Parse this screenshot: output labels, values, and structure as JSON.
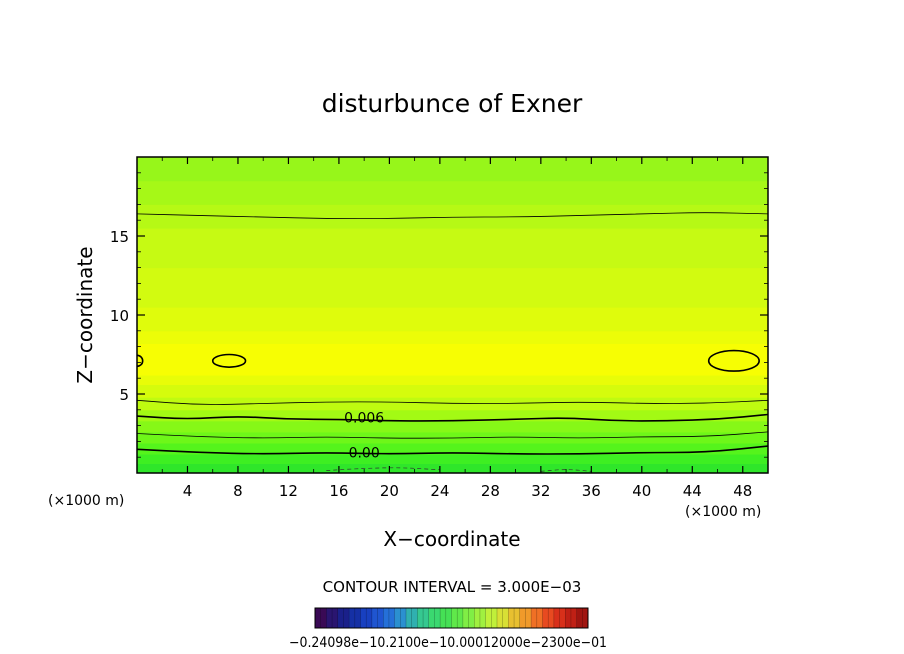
{
  "chart_data": {
    "type": "contour",
    "title": "disturbunce of Exner",
    "xlabel": "X−coordinate",
    "ylabel": "Z−coordinate",
    "x_unit_label": "(×1000 m)",
    "y_unit_label": "(×1000 m)",
    "xlim": [
      0,
      50
    ],
    "ylim": [
      0,
      20
    ],
    "x_ticks": [
      "4",
      "8",
      "12",
      "16",
      "20",
      "24",
      "28",
      "32",
      "36",
      "40",
      "44",
      "48"
    ],
    "y_ticks": [
      "5",
      "10",
      "15"
    ],
    "contour_interval_text": "CONTOUR INTERVAL = 3.000E−03",
    "contour_labels": [
      {
        "text": "0.006",
        "x": 18,
        "z": 3.5
      },
      {
        "text": "0.00",
        "x": 18,
        "z": 1.3
      }
    ],
    "contours": [
      {
        "level": 0.0,
        "thick": true,
        "points": [
          [
            0,
            1.5
          ],
          [
            5,
            1.3
          ],
          [
            10,
            1.2
          ],
          [
            15,
            1.3
          ],
          [
            20,
            1.2
          ],
          [
            25,
            1.3
          ],
          [
            30,
            1.2
          ],
          [
            35,
            1.2
          ],
          [
            40,
            1.3
          ],
          [
            45,
            1.3
          ],
          [
            50,
            1.7
          ]
        ]
      },
      {
        "level": 0.003,
        "thick": false,
        "points": [
          [
            0,
            2.5
          ],
          [
            5,
            2.3
          ],
          [
            10,
            2.2
          ],
          [
            15,
            2.3
          ],
          [
            20,
            2.2
          ],
          [
            25,
            2.2
          ],
          [
            30,
            2.3
          ],
          [
            35,
            2.2
          ],
          [
            40,
            2.3
          ],
          [
            45,
            2.3
          ],
          [
            50,
            2.6
          ]
        ]
      },
      {
        "level": 0.006,
        "thick": true,
        "points": [
          [
            0,
            3.6
          ],
          [
            4,
            3.4
          ],
          [
            8,
            3.6
          ],
          [
            12,
            3.4
          ],
          [
            16,
            3.4
          ],
          [
            20,
            3.3
          ],
          [
            25,
            3.3
          ],
          [
            30,
            3.4
          ],
          [
            34,
            3.5
          ],
          [
            38,
            3.3
          ],
          [
            42,
            3.3
          ],
          [
            46,
            3.4
          ],
          [
            50,
            3.7
          ]
        ]
      },
      {
        "level": 0.009,
        "thick": false,
        "points": [
          [
            0,
            4.6
          ],
          [
            5,
            4.3
          ],
          [
            10,
            4.4
          ],
          [
            15,
            4.5
          ],
          [
            20,
            4.5
          ],
          [
            25,
            4.4
          ],
          [
            30,
            4.4
          ],
          [
            35,
            4.5
          ],
          [
            40,
            4.4
          ],
          [
            45,
            4.4
          ],
          [
            50,
            4.6
          ]
        ]
      },
      {
        "level": 0.009,
        "thick": false,
        "points": [
          [
            0,
            16.4
          ],
          [
            5,
            16.3
          ],
          [
            10,
            16.2
          ],
          [
            15,
            16.1
          ],
          [
            20,
            16.1
          ],
          [
            25,
            16.2
          ],
          [
            30,
            16.2
          ],
          [
            35,
            16.3
          ],
          [
            40,
            16.4
          ],
          [
            45,
            16.5
          ],
          [
            50,
            16.4
          ]
        ]
      }
    ],
    "closed_contours": [
      {
        "level": 0.015,
        "cx": 7.3,
        "cz": 7.1,
        "rx": 1.3,
        "rz": 0.4
      },
      {
        "level": 0.015,
        "cx": 47.3,
        "cz": 7.1,
        "rx": 2.0,
        "rz": 0.65
      },
      {
        "level": 0.015,
        "cx": 0.0,
        "cz": 7.1,
        "rx": 0.45,
        "rz": 0.35
      }
    ],
    "negative_contours": [
      {
        "level": -0.003,
        "points": [
          [
            15,
            0.15
          ],
          [
            18,
            0.3
          ],
          [
            21,
            0.35
          ],
          [
            24,
            0.2
          ]
        ]
      },
      {
        "level": -0.003,
        "points": [
          [
            32,
            0.1
          ],
          [
            34,
            0.25
          ],
          [
            36,
            0.1
          ]
        ]
      }
    ],
    "fill_bands": [
      {
        "z0": 0.0,
        "z1": 0.6,
        "color": "#2fe62a"
      },
      {
        "z0": 0.6,
        "z1": 1.2,
        "color": "#3eef22"
      },
      {
        "z0": 1.2,
        "z1": 1.9,
        "color": "#55f41c"
      },
      {
        "z0": 1.9,
        "z1": 2.6,
        "color": "#6ef719"
      },
      {
        "z0": 2.6,
        "z1": 3.3,
        "color": "#86f817"
      },
      {
        "z0": 3.3,
        "z1": 4.0,
        "color": "#a3fa14"
      },
      {
        "z0": 4.0,
        "z1": 4.8,
        "color": "#bffb10"
      },
      {
        "z0": 4.8,
        "z1": 5.6,
        "color": "#d5fc0c"
      },
      {
        "z0": 5.6,
        "z1": 6.2,
        "color": "#e8fd08"
      },
      {
        "z0": 6.2,
        "z1": 8.2,
        "color": "#f7fe03"
      },
      {
        "z0": 8.2,
        "z1": 9.0,
        "color": "#ecfd08"
      },
      {
        "z0": 9.0,
        "z1": 10.5,
        "color": "#dffc0c"
      },
      {
        "z0": 10.5,
        "z1": 13.0,
        "color": "#d2fb10"
      },
      {
        "z0": 13.0,
        "z1": 15.5,
        "color": "#c6fa13"
      },
      {
        "z0": 15.5,
        "z1": 17.0,
        "color": "#b6f915"
      },
      {
        "z0": 17.0,
        "z1": 18.5,
        "color": "#a6f817"
      },
      {
        "z0": 18.5,
        "z1": 20.0,
        "color": "#97f61a"
      }
    ],
    "colorbar": {
      "colors": [
        "#3a0a55",
        "#2a1570",
        "#1a208a",
        "#1530a5",
        "#1840c0",
        "#1f55d0",
        "#2570d8",
        "#2b90d0",
        "#30b0b0",
        "#35c890",
        "#3ad870",
        "#45e055",
        "#60e84a",
        "#80ee45",
        "#a0f040",
        "#c0f03a",
        "#d8e035",
        "#e8c030",
        "#f09a2a",
        "#f07025",
        "#e84a20",
        "#d8301a",
        "#c02015",
        "#a01510"
      ],
      "labels_text": "−0.24098e−10.2100e−10.00012000e−2300e−01"
    }
  }
}
